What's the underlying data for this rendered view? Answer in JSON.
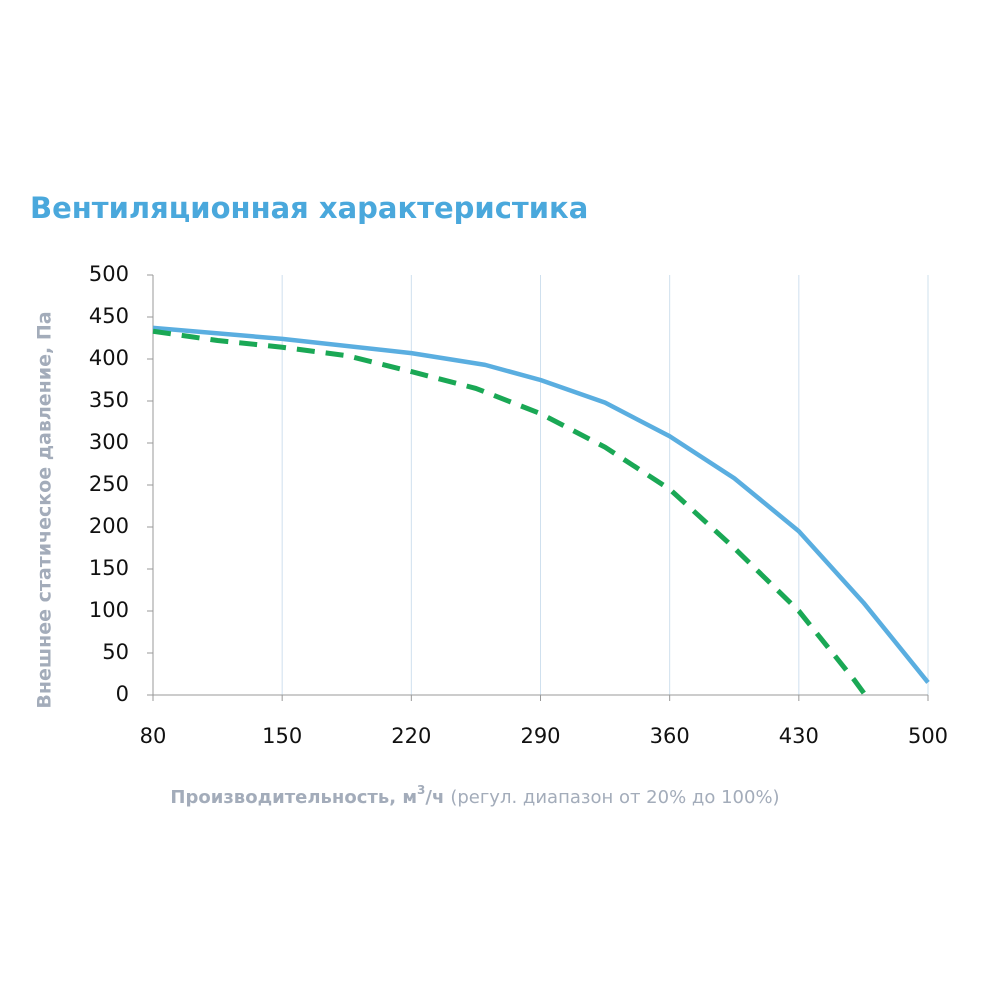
{
  "chart_data": {
    "type": "line",
    "title": "Вентиляционная характеристика",
    "ylabel": "Внешнее статическое давление, Па",
    "xlabel": {
      "main": "Производительность, м",
      "sup": "3",
      "unit": "/ч",
      "note": "(регул. диапазон от 20% до 100%)"
    },
    "xlim": [
      80,
      500
    ],
    "xticks": [
      80,
      150,
      220,
      290,
      360,
      430,
      500
    ],
    "ylim": [
      0,
      500
    ],
    "yticks": [
      0,
      50,
      100,
      150,
      200,
      250,
      300,
      350,
      400,
      450,
      500
    ],
    "grid": "x",
    "series": [
      {
        "color": "#5aaee0",
        "dash": false,
        "x": [
          80,
          150,
          220,
          260,
          290,
          325,
          360,
          395,
          430,
          465,
          500
        ],
        "values": [
          437,
          424,
          407,
          393,
          375,
          348,
          308,
          258,
          195,
          110,
          15
        ]
      },
      {
        "color": "#1aa855",
        "dash": true,
        "x": [
          80,
          115,
          150,
          185,
          220,
          255,
          290,
          325,
          360,
          395,
          430,
          460,
          466
        ],
        "values": [
          433,
          422,
          414,
          404,
          385,
          365,
          335,
          295,
          245,
          175,
          100,
          18,
          0
        ]
      }
    ]
  }
}
